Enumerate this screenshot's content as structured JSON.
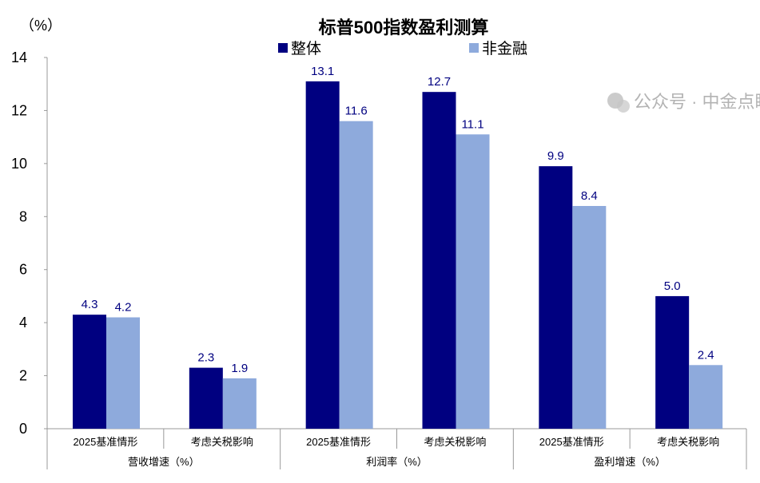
{
  "chart_data": {
    "type": "bar",
    "title": "标普500指数盈利测算",
    "ylabel": "（%）",
    "ylim": [
      0,
      14
    ],
    "yticks": [
      0,
      2,
      4,
      6,
      8,
      10,
      12,
      14
    ],
    "grid": false,
    "legend_position": "top",
    "categories": [
      "2025基准情形",
      "考虑关税影响",
      "2025基准情形",
      "考虑关税影响",
      "2025基准情形",
      "考虑关税影响"
    ],
    "groups": [
      "营收增速（%）",
      "利润率（%）",
      "盈利增速（%）"
    ],
    "series": [
      {
        "name": "整体",
        "color": "#000080",
        "values": [
          4.3,
          2.3,
          13.1,
          12.7,
          9.9,
          5.0
        ]
      },
      {
        "name": "非金融",
        "color": "#8EAADC",
        "values": [
          4.2,
          1.9,
          11.6,
          11.1,
          8.4,
          2.4
        ]
      }
    ],
    "data_labels": [
      [
        "4.3",
        "2.3",
        "13.1",
        "12.7",
        "9.9",
        "5.0"
      ],
      [
        "4.2",
        "1.9",
        "11.6",
        "11.1",
        "8.4",
        "2.4"
      ]
    ]
  },
  "watermark": "公众号 · 中金点睛"
}
